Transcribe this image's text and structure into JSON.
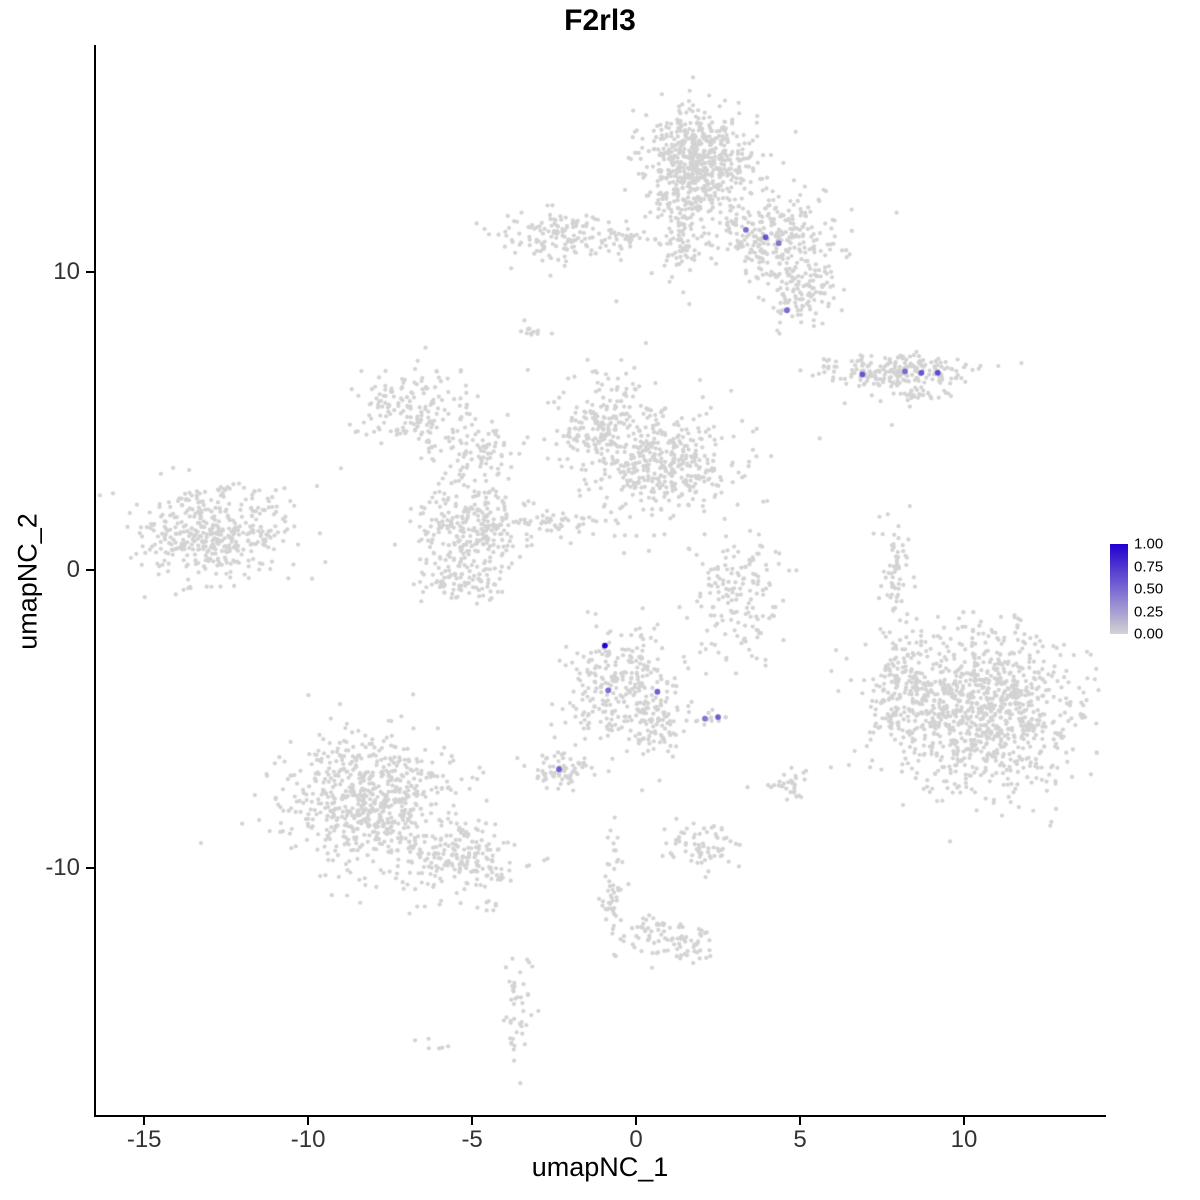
{
  "chart_data": {
    "type": "scatter",
    "title": "F2rl3",
    "xlabel": "umapNC_1",
    "ylabel": "umapNC_2",
    "xlim": [
      -16.5,
      14.3
    ],
    "ylim": [
      -18.3,
      17.6
    ],
    "x_ticks": [
      -15,
      -10,
      -5,
      0,
      5,
      10
    ],
    "y_ticks": [
      10,
      0,
      -10
    ],
    "grid": false,
    "point_color_zero": "#D3D3D3",
    "legend": {
      "position": "right",
      "tick_labels": [
        "1.00",
        "0.75",
        "0.50",
        "0.25",
        "0.00"
      ],
      "low_color": "#D3D3D3",
      "high_color": "#2000D0"
    },
    "clusters": [
      {
        "name": "top-main",
        "cx": 1.9,
        "cy": 13.6,
        "sx": 0.85,
        "sy": 1.0,
        "n": 620
      },
      {
        "name": "top-main-neck",
        "cx": 1.3,
        "cy": 11.2,
        "sx": 0.35,
        "sy": 0.7,
        "n": 90
      },
      {
        "name": "top-right-wing",
        "cx": 4.2,
        "cy": 11.2,
        "sx": 1.0,
        "sy": 0.65,
        "n": 260
      },
      {
        "name": "top-right-lobe",
        "cx": 5.0,
        "cy": 9.5,
        "sx": 0.6,
        "sy": 0.6,
        "n": 130
      },
      {
        "name": "top-left-small",
        "cx": -2.4,
        "cy": 11.2,
        "sx": 0.85,
        "sy": 0.45,
        "n": 130
      },
      {
        "name": "top-left-trail",
        "cx": -0.6,
        "cy": 11.1,
        "sx": 0.7,
        "sy": 0.18,
        "n": 40
      },
      {
        "name": "fish",
        "cx": 8.0,
        "cy": 6.6,
        "sx": 1.15,
        "sy": 0.3,
        "n": 220
      },
      {
        "name": "fish-tail",
        "cx": 8.6,
        "cy": 5.9,
        "sx": 0.45,
        "sy": 0.15,
        "n": 25
      },
      {
        "name": "mid-left-arm",
        "cx": -6.8,
        "cy": 5.4,
        "sx": 0.9,
        "sy": 0.7,
        "n": 170
      },
      {
        "name": "mid-bridge",
        "cx": -4.9,
        "cy": 4.0,
        "sx": 0.7,
        "sy": 0.5,
        "n": 80
      },
      {
        "name": "mid-upper",
        "cx": -1.1,
        "cy": 4.8,
        "sx": 0.75,
        "sy": 0.85,
        "n": 200
      },
      {
        "name": "mid-main",
        "cx": 0.9,
        "cy": 3.5,
        "sx": 1.05,
        "sy": 0.95,
        "n": 380
      },
      {
        "name": "tiny-top-mid",
        "cx": -3.1,
        "cy": 8.0,
        "sx": 0.3,
        "sy": 0.18,
        "n": 12
      },
      {
        "name": "mid-lower-left",
        "cx": -5.0,
        "cy": 1.4,
        "sx": 0.85,
        "sy": 0.85,
        "n": 280
      },
      {
        "name": "mid-streak",
        "cx": -2.2,
        "cy": 1.6,
        "sx": 0.9,
        "sy": 0.3,
        "n": 60
      },
      {
        "name": "mid-lower-ext",
        "cx": -5.4,
        "cy": -0.5,
        "sx": 0.5,
        "sy": 0.4,
        "n": 80
      },
      {
        "name": "left-big",
        "cx": -12.9,
        "cy": 1.2,
        "sx": 1.1,
        "sy": 0.8,
        "n": 420
      },
      {
        "name": "mid-right-ring",
        "cx": 3.1,
        "cy": -1.0,
        "sx": 0.65,
        "sy": 0.95,
        "n": 150
      },
      {
        "name": "right-sliver",
        "cx": 7.9,
        "cy": -0.3,
        "sx": 0.25,
        "sy": 1.1,
        "n": 70
      },
      {
        "name": "right-big",
        "cx": 10.6,
        "cy": -4.7,
        "sx": 1.45,
        "sy": 1.35,
        "n": 1000
      },
      {
        "name": "right-big-arm",
        "cx": 8.1,
        "cy": -4.3,
        "sx": 0.5,
        "sy": 0.95,
        "n": 120
      },
      {
        "name": "bottom-expr",
        "cx": -0.5,
        "cy": -3.9,
        "sx": 0.85,
        "sy": 0.95,
        "n": 280
      },
      {
        "name": "bottom-expr-tail",
        "cx": 0.8,
        "cy": -5.3,
        "sx": 0.45,
        "sy": 0.55,
        "n": 70
      },
      {
        "name": "small-below",
        "cx": -2.35,
        "cy": -6.7,
        "sx": 0.45,
        "sy": 0.3,
        "n": 70
      },
      {
        "name": "tiny-pair",
        "cx": 2.3,
        "cy": -5.0,
        "sx": 0.3,
        "sy": 0.12,
        "n": 12
      },
      {
        "name": "bottom-left-big",
        "cx": -8.3,
        "cy": -7.7,
        "sx": 1.3,
        "sy": 1.1,
        "n": 650
      },
      {
        "name": "bottom-left-tail",
        "cx": -5.6,
        "cy": -9.7,
        "sx": 0.95,
        "sy": 0.6,
        "n": 200
      },
      {
        "name": "bot-small-1",
        "cx": 2.0,
        "cy": -9.2,
        "sx": 0.5,
        "sy": 0.5,
        "n": 70
      },
      {
        "name": "bot-small-2",
        "cx": 4.7,
        "cy": -7.2,
        "sx": 0.3,
        "sy": 0.27,
        "n": 30
      },
      {
        "name": "bot-strand",
        "cx": -0.7,
        "cy": -10.7,
        "sx": 0.18,
        "sy": 1.0,
        "n": 50
      },
      {
        "name": "bot-blob-1",
        "cx": 0.6,
        "cy": -12.25,
        "sx": 0.55,
        "sy": 0.33,
        "n": 60
      },
      {
        "name": "bot-blob-2",
        "cx": 1.8,
        "cy": -12.6,
        "sx": 0.3,
        "sy": 0.3,
        "n": 30
      },
      {
        "name": "bot-tiny-1",
        "cx": -4.4,
        "cy": -11.2,
        "sx": 0.25,
        "sy": 0.18,
        "n": 7
      },
      {
        "name": "bot-strand-2",
        "cx": -3.6,
        "cy": -14.8,
        "sx": 0.22,
        "sy": 0.85,
        "n": 45
      },
      {
        "name": "bot-tiny-2",
        "cx": -6.2,
        "cy": -15.9,
        "sx": 0.3,
        "sy": 0.12,
        "n": 6
      }
    ],
    "singles": [
      [
        2.6,
        3.0
      ],
      [
        2.7,
        1.7
      ],
      [
        0.2,
        -1.3
      ],
      [
        6.1,
        -2.7
      ],
      [
        -3.3,
        6.7
      ],
      [
        5.6,
        4.4
      ],
      [
        7.8,
        4.85
      ],
      [
        3.4,
        -7.3
      ],
      [
        -2.7,
        -9.7
      ],
      [
        4.0,
        2.3
      ],
      [
        -9.0,
        3.4
      ],
      [
        0.3,
        7.6
      ],
      [
        -0.6,
        9.0
      ],
      [
        -14.6,
        0.2
      ],
      [
        2.9,
        6.0
      ]
    ],
    "expressing_points": [
      {
        "x": 3.35,
        "y": 11.4,
        "value": 0.5
      },
      {
        "x": 3.95,
        "y": 11.15,
        "value": 0.6
      },
      {
        "x": 4.35,
        "y": 10.95,
        "value": 0.45
      },
      {
        "x": 4.6,
        "y": 8.7,
        "value": 0.5
      },
      {
        "x": 6.9,
        "y": 6.55,
        "value": 0.6
      },
      {
        "x": 8.2,
        "y": 6.65,
        "value": 0.5
      },
      {
        "x": 8.7,
        "y": 6.6,
        "value": 0.6
      },
      {
        "x": 9.2,
        "y": 6.6,
        "value": 0.65
      },
      {
        "x": -0.95,
        "y": -2.55,
        "value": 1.0
      },
      {
        "x": -0.85,
        "y": -4.05,
        "value": 0.5
      },
      {
        "x": 0.65,
        "y": -4.1,
        "value": 0.55
      },
      {
        "x": 2.1,
        "y": -5.0,
        "value": 0.45
      },
      {
        "x": 2.5,
        "y": -4.95,
        "value": 0.55
      },
      {
        "x": -2.35,
        "y": -6.7,
        "value": 0.55
      }
    ]
  }
}
